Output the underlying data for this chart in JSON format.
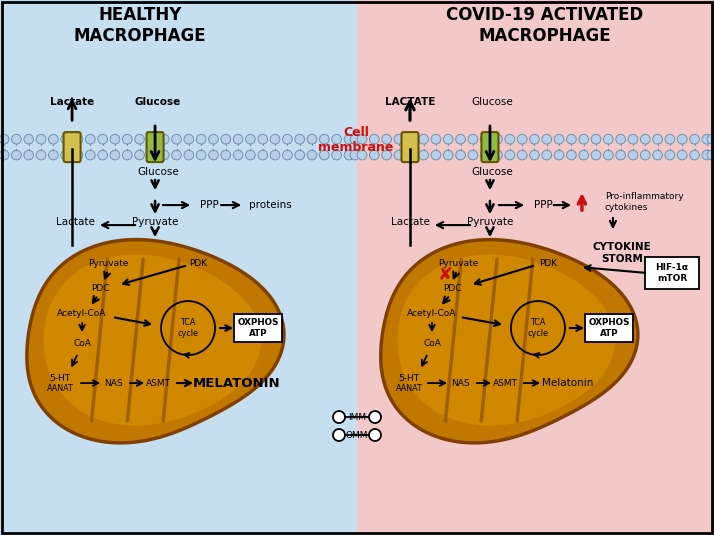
{
  "bg_left": "#c5dff0",
  "bg_right": "#f2c8c8",
  "mito_outer": "#c07800",
  "mito_inner": "#d08800",
  "mito_crista": "#a06000",
  "mito_edge": "#804000",
  "mem_head": "#b8d0e8",
  "mem_edge": "#7090b0",
  "trans_yellow": "#d4c050",
  "trans_green": "#90bb44",
  "red": "#cc1010",
  "black": "#000000",
  "white": "#ffffff",
  "title_L": "HEALTHY\nMACROPHAGE",
  "title_R": "COVID-19 ACTIVATED\nMACROPHAGE",
  "mem_label": "Cell\nmembrane"
}
